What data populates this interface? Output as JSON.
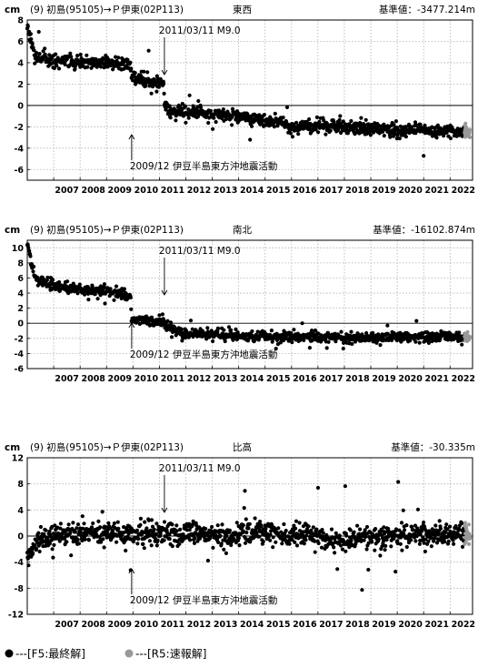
{
  "chart_data": [
    {
      "type": "scatter",
      "unit": "cm",
      "station_label": "(9) 初島(95105)→Ｐ伊東(02P113)",
      "component": "東西",
      "reference": "基準値：-3477.214m",
      "ylim": [
        -7,
        8
      ],
      "yticks": [
        8,
        6,
        4,
        2,
        0,
        -2,
        -4,
        -6
      ],
      "annotations": [
        {
          "text": "2011/03/11 M9.0",
          "date": 2011.19,
          "direction": "down"
        },
        {
          "text": "2009/12 伊豆半島東方沖地震活動",
          "date": 2009.95,
          "direction": "up"
        }
      ],
      "trend_f5": [
        [
          2006.0,
          7.5
        ],
        [
          2006.15,
          6.2
        ],
        [
          2006.3,
          4.6
        ],
        [
          2007.0,
          4.2
        ],
        [
          2008.0,
          4.1
        ],
        [
          2009.0,
          4.0
        ],
        [
          2009.9,
          3.9
        ],
        [
          2009.95,
          2.6
        ],
        [
          2010.5,
          2.2
        ],
        [
          2011.18,
          2.0
        ],
        [
          2011.2,
          0.0
        ],
        [
          2011.4,
          -0.5
        ],
        [
          2012.0,
          -0.5
        ],
        [
          2013.0,
          -0.8
        ],
        [
          2014.0,
          -1.0
        ],
        [
          2015.0,
          -1.5
        ],
        [
          2015.8,
          -1.6
        ],
        [
          2015.85,
          -2.0
        ],
        [
          2017.0,
          -1.9
        ],
        [
          2018.0,
          -2.1
        ],
        [
          2019.0,
          -2.2
        ],
        [
          2020.0,
          -2.3
        ],
        [
          2021.0,
          -2.3
        ],
        [
          2022.0,
          -2.4
        ],
        [
          2022.55,
          -2.5
        ]
      ],
      "trend_r5": [
        [
          2022.55,
          -2.5
        ],
        [
          2022.75,
          -2.6
        ]
      ],
      "scatter": 1.1,
      "seed": 11
    },
    {
      "type": "scatter",
      "unit": "cm",
      "station_label": "(9) 初島(95105)→Ｐ伊東(02P113)",
      "component": "南北",
      "reference": "基準値：-16102.874m",
      "ylim": [
        -6,
        11
      ],
      "yticks": [
        10,
        8,
        6,
        4,
        2,
        0,
        -2,
        -4,
        -6
      ],
      "annotations": [
        {
          "text": "2011/03/11 M9.0",
          "date": 2011.19,
          "direction": "down"
        },
        {
          "text": "2009/12 伊豆半島東方沖地震活動",
          "date": 2009.95,
          "direction": "up"
        }
      ],
      "trend_f5": [
        [
          2006.0,
          10.8
        ],
        [
          2006.15,
          8.0
        ],
        [
          2006.3,
          6.0
        ],
        [
          2007.0,
          5.0
        ],
        [
          2008.0,
          4.5
        ],
        [
          2009.0,
          4.1
        ],
        [
          2009.9,
          3.7
        ],
        [
          2009.95,
          0.8
        ],
        [
          2010.5,
          0.4
        ],
        [
          2011.18,
          0.0
        ],
        [
          2011.4,
          -0.5
        ],
        [
          2012.0,
          -1.5
        ],
        [
          2013.0,
          -1.4
        ],
        [
          2014.0,
          -1.6
        ],
        [
          2015.0,
          -1.7
        ],
        [
          2016.0,
          -1.8
        ],
        [
          2017.0,
          -1.8
        ],
        [
          2018.0,
          -2.0
        ],
        [
          2019.0,
          -2.0
        ],
        [
          2020.0,
          -1.8
        ],
        [
          2021.0,
          -1.8
        ],
        [
          2022.0,
          -1.8
        ],
        [
          2022.55,
          -1.8
        ]
      ],
      "trend_r5": [
        [
          2022.55,
          -1.8
        ],
        [
          2022.75,
          -1.8
        ]
      ],
      "scatter": 1.2,
      "seed": 23
    },
    {
      "type": "scatter",
      "unit": "cm",
      "station_label": "(9) 初島(95105)→Ｐ伊東(02P113)",
      "component": "比高",
      "reference": "基準値：-30.335m",
      "ylim": [
        -12,
        12
      ],
      "yticks": [
        12,
        8,
        4,
        0,
        -4,
        -8,
        -12
      ],
      "annotations": [
        {
          "text": "2011/03/11 M9.0",
          "date": 2011.19,
          "direction": "down"
        },
        {
          "text": "2009/12 伊豆半島東方沖地震活動",
          "date": 2009.95,
          "direction": "up"
        }
      ],
      "trend_f5": [
        [
          2006.0,
          -3.0
        ],
        [
          2006.4,
          -1.0
        ],
        [
          2007.0,
          0.0
        ],
        [
          2008.0,
          0.5
        ],
        [
          2009.0,
          0.5
        ],
        [
          2010.0,
          0.3
        ],
        [
          2011.0,
          0.2
        ],
        [
          2012.0,
          0.5
        ],
        [
          2013.0,
          0.3
        ],
        [
          2014.0,
          0.3
        ],
        [
          2015.0,
          0.5
        ],
        [
          2016.0,
          0.0
        ],
        [
          2017.0,
          0.0
        ],
        [
          2017.5,
          -1.0
        ],
        [
          2018.0,
          -0.5
        ],
        [
          2019.0,
          0.0
        ],
        [
          2020.0,
          0.0
        ],
        [
          2021.0,
          0.3
        ],
        [
          2022.0,
          0.3
        ],
        [
          2022.55,
          0.5
        ]
      ],
      "trend_r5": [
        [
          2022.55,
          0.5
        ],
        [
          2022.75,
          0.0
        ]
      ],
      "scatter": 3.0,
      "seed": 37
    }
  ],
  "x_axis": {
    "xlim": [
      2006.0,
      2022.85
    ],
    "tick_labels": [
      "2007",
      "2008",
      "2009",
      "2010",
      "2011",
      "2012",
      "2013",
      "2014",
      "2015",
      "2016",
      "2017",
      "2018",
      "2019",
      "2020",
      "2021",
      "2022"
    ]
  },
  "legend": [
    {
      "label": "---[F5:最終解]",
      "color": "#000000"
    },
    {
      "label": "---[R5:速報解]",
      "color": "#999999"
    }
  ],
  "colors": {
    "f5": "#000000",
    "r5": "#999999",
    "grid": "#b0b0b0"
  }
}
